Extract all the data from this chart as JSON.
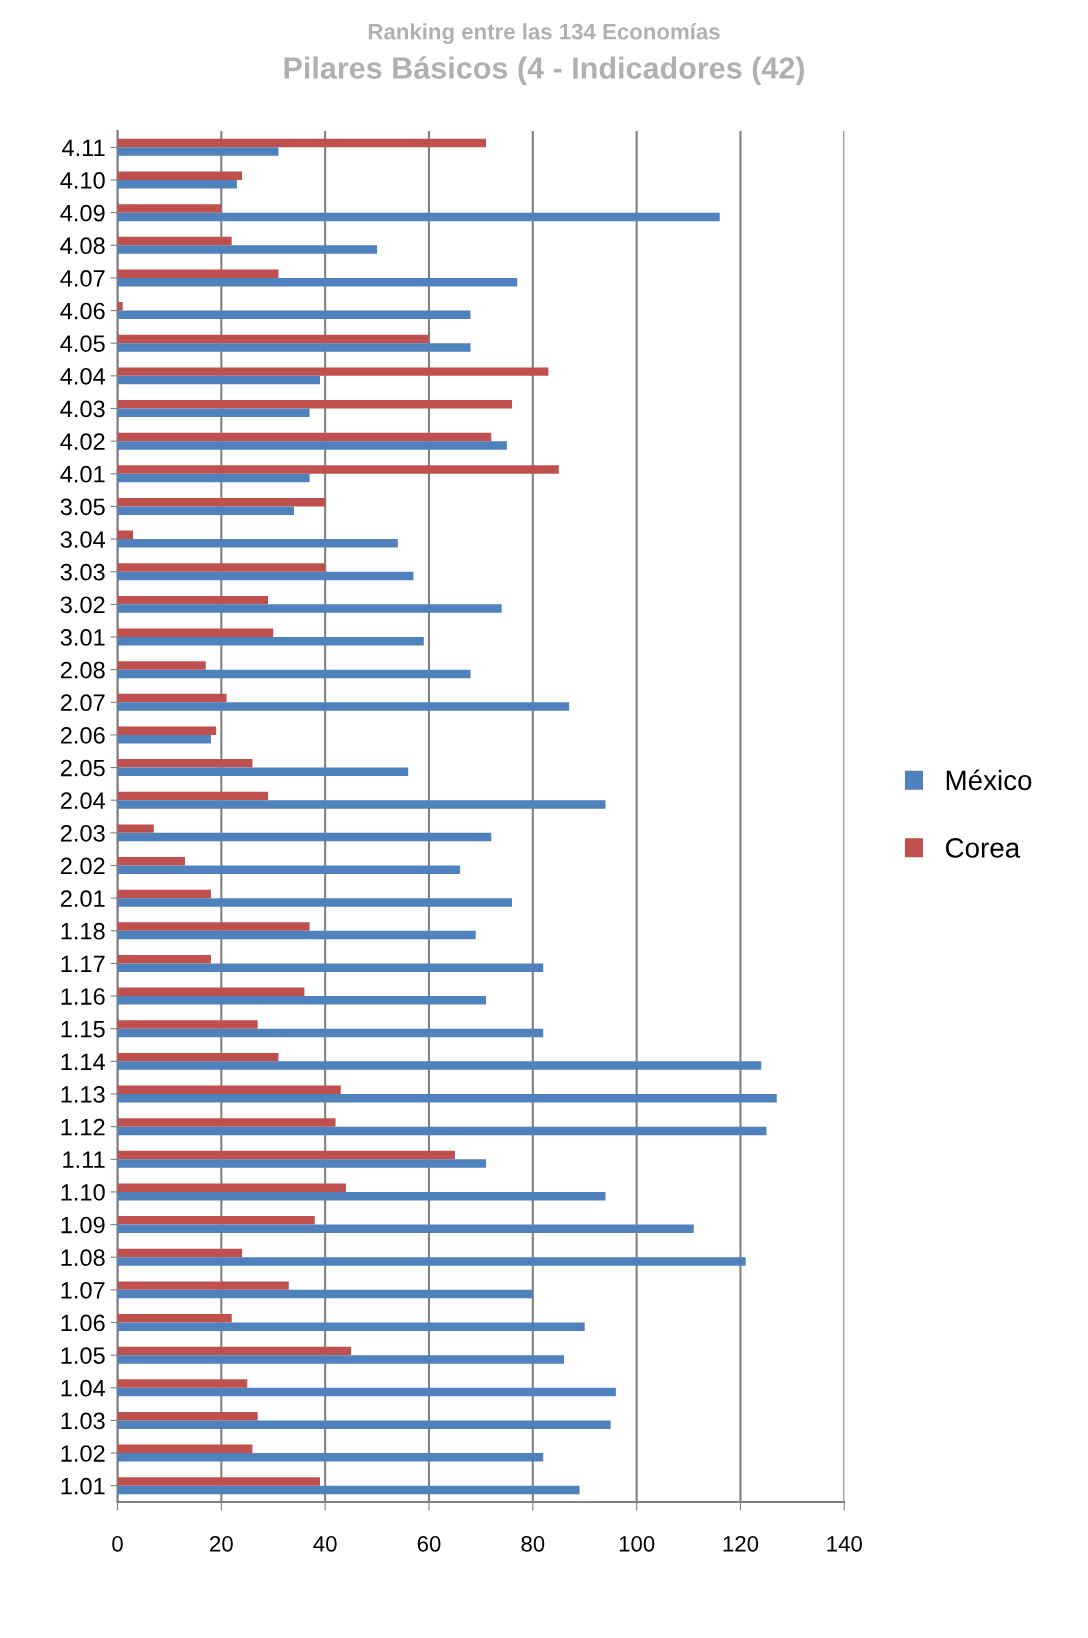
{
  "chart_data": {
    "type": "bar",
    "orientation": "horizontal",
    "title": "Ranking entre las 134 Economías",
    "subtitle": "Pilares Básicos (4 - Indicadores (42)",
    "categories": [
      "4.11",
      "4.10",
      "4.09",
      "4.08",
      "4.07",
      "4.06",
      "4.05",
      "4.04",
      "4.03",
      "4.02",
      "4.01",
      "3.05",
      "3.04",
      "3.03",
      "3.02",
      "3.01",
      "2.08",
      "2.07",
      "2.06",
      "2.05",
      "2.04",
      "2.03",
      "2.02",
      "2.01",
      "1.18",
      "1.17",
      "1.16",
      "1.15",
      "1.14",
      "1.13",
      "1.12",
      "1.11",
      "1.10",
      "1.09",
      "1.08",
      "1.07",
      "1.06",
      "1.05",
      "1.04",
      "1.03",
      "1.02",
      "1.01"
    ],
    "series": [
      {
        "name": "Corea",
        "color": "#c0504d",
        "values": [
          71,
          24,
          20,
          22,
          31,
          1,
          60,
          83,
          76,
          72,
          85,
          40,
          3,
          40,
          29,
          30,
          17,
          21,
          19,
          26,
          29,
          7,
          13,
          18,
          37,
          18,
          36,
          27,
          31,
          43,
          42,
          65,
          44,
          38,
          24,
          33,
          22,
          45,
          25,
          27,
          26,
          39
        ]
      },
      {
        "name": "México",
        "color": "#4f81bd",
        "values": [
          31,
          23,
          116,
          50,
          77,
          68,
          68,
          39,
          37,
          75,
          37,
          34,
          54,
          57,
          74,
          59,
          68,
          87,
          18,
          56,
          94,
          72,
          66,
          76,
          69,
          82,
          71,
          82,
          124,
          127,
          125,
          71,
          94,
          111,
          121,
          80,
          90,
          86,
          96,
          95,
          82,
          89
        ]
      }
    ],
    "xlim": [
      0,
      140
    ],
    "xticks": [
      0,
      20,
      40,
      60,
      80,
      100,
      120,
      140
    ],
    "grid": "x",
    "legend": "right"
  }
}
